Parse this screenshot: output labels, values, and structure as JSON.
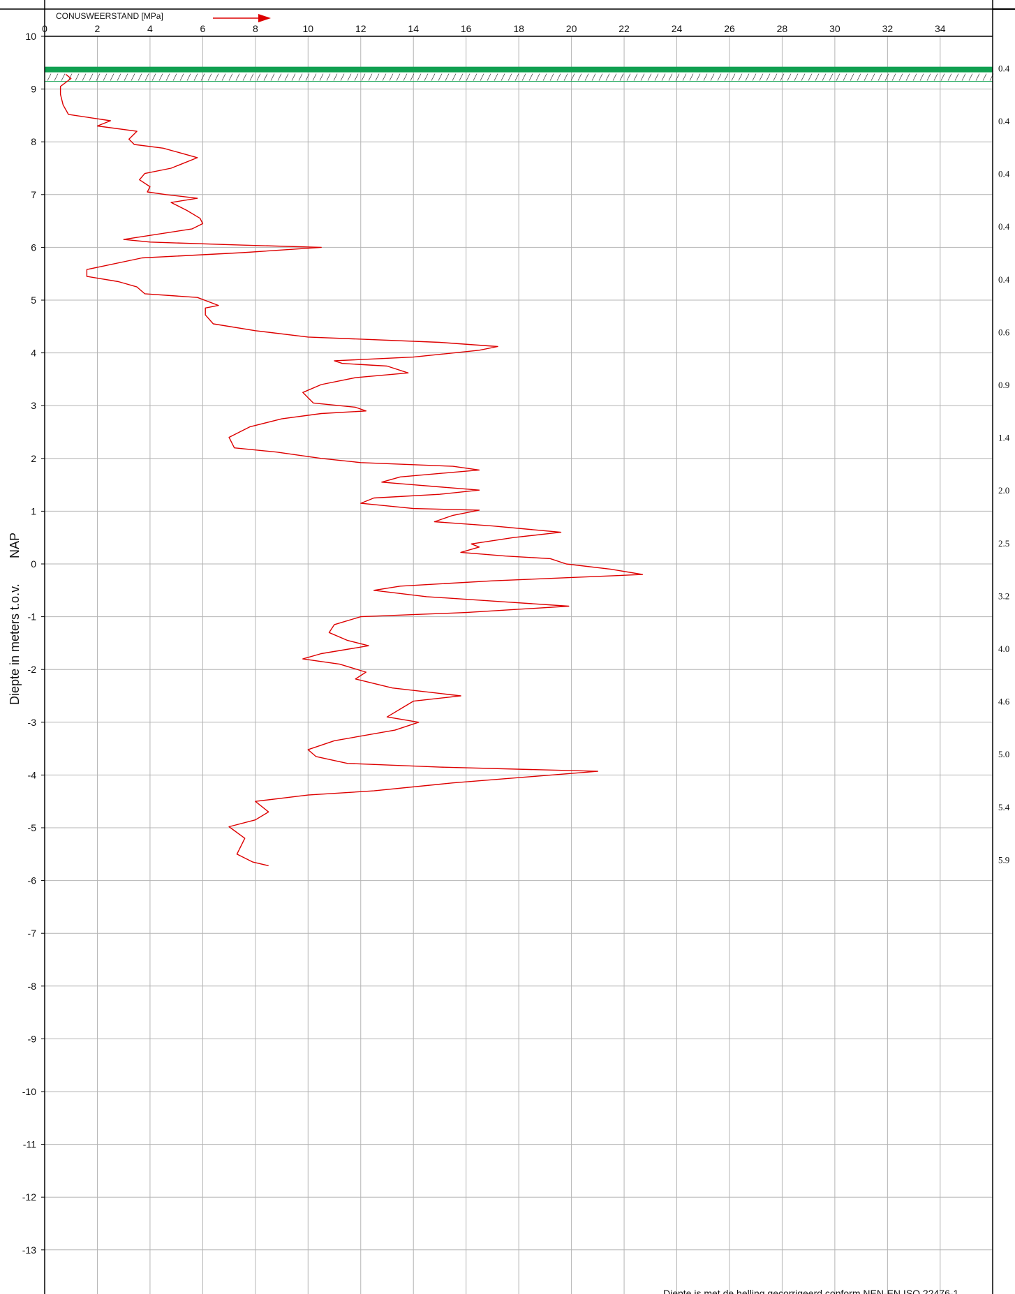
{
  "chart_data": {
    "type": "line",
    "title": "CONUSWEERSTAND [MPa]",
    "ylabel_left": "Diepte in meters t.o.v.",
    "ylabel_right": "NAP",
    "footnote": "Diepte is met de helling gecorrigeerd conform NEN-EN ISO 22476-1",
    "x_axis": {
      "range": [
        0,
        36
      ],
      "ticks": [
        0,
        2,
        4,
        6,
        8,
        10,
        12,
        14,
        16,
        18,
        20,
        22,
        24,
        26,
        28,
        30,
        32,
        34
      ],
      "tick_labels": [
        "0",
        "2",
        "4",
        "6",
        "8",
        "10",
        "12",
        "14",
        "16",
        "18",
        "20",
        "22",
        "24",
        "26",
        "28",
        "30",
        "32",
        "34"
      ]
    },
    "y_axis": {
      "range": [
        -14,
        10
      ],
      "ticks": [
        10,
        9,
        8,
        7,
        6,
        5,
        4,
        3,
        2,
        1,
        0,
        -1,
        -2,
        -3,
        -4,
        -5,
        -6,
        -7,
        -8,
        -9,
        -10,
        -11,
        -12,
        -13
      ],
      "tick_labels": [
        "10",
        "9",
        "8",
        "7",
        "6",
        "5",
        "4",
        "3",
        "2",
        "1",
        "0",
        "-1",
        "-2",
        "-3",
        "-4",
        "-5",
        "-6",
        "-7",
        "-8",
        "-9",
        "-10",
        "-11",
        "-12",
        "-13"
      ]
    },
    "grid": true,
    "ground_level": 9.37,
    "ground_color": "#10a050",
    "series": [
      {
        "color": "#dd0000",
        "points": [
          [
            0.8,
            9.28
          ],
          [
            1.0,
            9.2
          ],
          [
            0.6,
            9.05
          ],
          [
            0.6,
            8.9
          ],
          [
            0.7,
            8.7
          ],
          [
            0.9,
            8.52
          ],
          [
            2.5,
            8.4
          ],
          [
            2.0,
            8.3
          ],
          [
            3.5,
            8.2
          ],
          [
            3.2,
            8.05
          ],
          [
            3.4,
            7.95
          ],
          [
            4.5,
            7.88
          ],
          [
            5.8,
            7.7
          ],
          [
            4.8,
            7.5
          ],
          [
            3.8,
            7.4
          ],
          [
            3.6,
            7.28
          ],
          [
            4.0,
            7.15
          ],
          [
            3.9,
            7.05
          ],
          [
            4.6,
            7.0
          ],
          [
            5.8,
            6.93
          ],
          [
            4.8,
            6.85
          ],
          [
            5.4,
            6.7
          ],
          [
            5.9,
            6.55
          ],
          [
            6.0,
            6.45
          ],
          [
            5.6,
            6.35
          ],
          [
            3.0,
            6.15
          ],
          [
            4.0,
            6.1
          ],
          [
            7.0,
            6.05
          ],
          [
            10.5,
            6.0
          ],
          [
            7.5,
            5.9
          ],
          [
            3.7,
            5.8
          ],
          [
            1.6,
            5.58
          ],
          [
            1.6,
            5.45
          ],
          [
            2.8,
            5.35
          ],
          [
            3.5,
            5.25
          ],
          [
            3.8,
            5.12
          ],
          [
            5.8,
            5.05
          ],
          [
            6.6,
            4.9
          ],
          [
            6.1,
            4.85
          ],
          [
            6.1,
            4.72
          ],
          [
            6.4,
            4.55
          ],
          [
            8.0,
            4.42
          ],
          [
            10.0,
            4.3
          ],
          [
            15.0,
            4.2
          ],
          [
            17.2,
            4.12
          ],
          [
            16.5,
            4.05
          ],
          [
            14.0,
            3.92
          ],
          [
            11.0,
            3.85
          ],
          [
            11.3,
            3.8
          ],
          [
            13.0,
            3.75
          ],
          [
            13.8,
            3.62
          ],
          [
            11.8,
            3.53
          ],
          [
            10.5,
            3.4
          ],
          [
            9.8,
            3.25
          ],
          [
            10.2,
            3.05
          ],
          [
            11.8,
            2.97
          ],
          [
            12.2,
            2.9
          ],
          [
            10.5,
            2.85
          ],
          [
            9.0,
            2.75
          ],
          [
            7.8,
            2.6
          ],
          [
            7.0,
            2.4
          ],
          [
            7.2,
            2.2
          ],
          [
            8.8,
            2.12
          ],
          [
            10.5,
            2.0
          ],
          [
            12.0,
            1.92
          ],
          [
            15.5,
            1.85
          ],
          [
            16.5,
            1.78
          ],
          [
            13.5,
            1.65
          ],
          [
            12.8,
            1.55
          ],
          [
            14.0,
            1.5
          ],
          [
            16.5,
            1.4
          ],
          [
            15.0,
            1.32
          ],
          [
            12.5,
            1.25
          ],
          [
            12.0,
            1.15
          ],
          [
            14.0,
            1.05
          ],
          [
            16.5,
            1.02
          ],
          [
            15.5,
            0.92
          ],
          [
            14.8,
            0.8
          ],
          [
            17.0,
            0.72
          ],
          [
            19.6,
            0.6
          ],
          [
            17.8,
            0.5
          ],
          [
            16.2,
            0.38
          ],
          [
            16.5,
            0.32
          ],
          [
            15.8,
            0.22
          ],
          [
            17.5,
            0.15
          ],
          [
            19.2,
            0.1
          ],
          [
            19.8,
            0.0
          ],
          [
            21.5,
            -0.1
          ],
          [
            22.7,
            -0.2
          ],
          [
            17.0,
            -0.32
          ],
          [
            13.5,
            -0.42
          ],
          [
            12.5,
            -0.5
          ],
          [
            14.5,
            -0.62
          ],
          [
            17.5,
            -0.72
          ],
          [
            19.9,
            -0.8
          ],
          [
            16.0,
            -0.92
          ],
          [
            12.0,
            -1.0
          ],
          [
            11.0,
            -1.15
          ],
          [
            10.8,
            -1.3
          ],
          [
            11.5,
            -1.45
          ],
          [
            12.3,
            -1.55
          ],
          [
            10.5,
            -1.7
          ],
          [
            9.8,
            -1.8
          ],
          [
            11.2,
            -1.9
          ],
          [
            12.2,
            -2.05
          ],
          [
            11.8,
            -2.18
          ],
          [
            13.2,
            -2.35
          ],
          [
            15.8,
            -2.5
          ],
          [
            14.0,
            -2.6
          ],
          [
            13.5,
            -2.75
          ],
          [
            13.0,
            -2.9
          ],
          [
            14.2,
            -3.0
          ],
          [
            13.3,
            -3.15
          ],
          [
            11.0,
            -3.35
          ],
          [
            10.0,
            -3.52
          ],
          [
            10.3,
            -3.65
          ],
          [
            11.5,
            -3.78
          ],
          [
            15.0,
            -3.85
          ],
          [
            21.0,
            -3.93
          ],
          [
            15.5,
            -4.15
          ],
          [
            12.5,
            -4.3
          ],
          [
            10.0,
            -4.38
          ],
          [
            8.0,
            -4.5
          ],
          [
            8.5,
            -4.7
          ],
          [
            8.0,
            -4.85
          ],
          [
            7.0,
            -4.98
          ],
          [
            7.6,
            -5.2
          ],
          [
            7.4,
            -5.4
          ],
          [
            7.3,
            -5.5
          ],
          [
            7.9,
            -5.65
          ],
          [
            8.5,
            -5.72
          ]
        ]
      }
    ],
    "right_scale": {
      "values": [
        "0.4",
        "0.4",
        "0.4",
        "0.4",
        "0.4",
        "0.6",
        "0.9",
        "1.4",
        "2.0",
        "2.5",
        "3.2",
        "4.0",
        "4.6",
        "5.0",
        "5.4",
        "5.9"
      ],
      "depths": [
        9.4,
        8.4,
        7.4,
        6.4,
        5.4,
        4.4,
        3.4,
        2.4,
        1.4,
        0.4,
        -0.6,
        -1.6,
        -2.6,
        -3.6,
        -4.6,
        -5.6
      ]
    }
  }
}
